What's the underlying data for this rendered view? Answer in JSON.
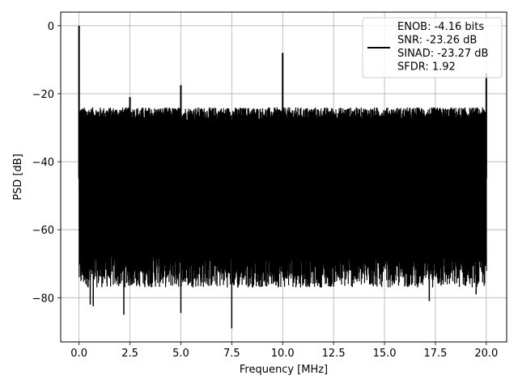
{
  "chart_data": {
    "type": "line",
    "title": "",
    "xlabel": "Frequency [MHz]",
    "ylabel": "PSD [dB]",
    "xlim": [
      -0.9,
      21.0
    ],
    "ylim": [
      -93,
      4
    ],
    "xticks": [
      0.0,
      2.5,
      5.0,
      7.5,
      10.0,
      12.5,
      15.0,
      17.5,
      20.0
    ],
    "xtick_labels": [
      "0.0",
      "2.5",
      "5.0",
      "7.5",
      "10.0",
      "12.5",
      "15.0",
      "17.5",
      "20.0"
    ],
    "yticks": [
      0,
      -20,
      -40,
      -60,
      -80
    ],
    "ytick_labels": [
      "0",
      "−20",
      "−40",
      "−60",
      "−80"
    ],
    "grid": true,
    "line_color": "#000000",
    "legend": {
      "placement": "top-right",
      "entries": [
        "ENOB: -4.16 bits",
        "SNR: -23.26 dB",
        "SINAD: -23.27 dB",
        "SFDR: 1.92"
      ]
    },
    "series": [
      {
        "noise_floor_top_db": -26,
        "noise_floor_bottom_db": -72,
        "peaks": [
          {
            "x": 0.0,
            "y": 0.0
          },
          {
            "x": 2.5,
            "y": -21.0
          },
          {
            "x": 5.0,
            "y": -17.5
          },
          {
            "x": 10.0,
            "y": -8.0
          },
          {
            "x": 20.0,
            "y": -14.0
          }
        ],
        "dips": [
          {
            "x": 0.55,
            "y": -82.0
          },
          {
            "x": 0.7,
            "y": -82.5
          },
          {
            "x": 2.2,
            "y": -85.0
          },
          {
            "x": 5.0,
            "y": -84.5
          },
          {
            "x": 7.5,
            "y": -89.0
          },
          {
            "x": 7.8,
            "y": -77.0
          },
          {
            "x": 17.2,
            "y": -81.0
          },
          {
            "x": 19.5,
            "y": -79.0
          }
        ]
      }
    ]
  }
}
